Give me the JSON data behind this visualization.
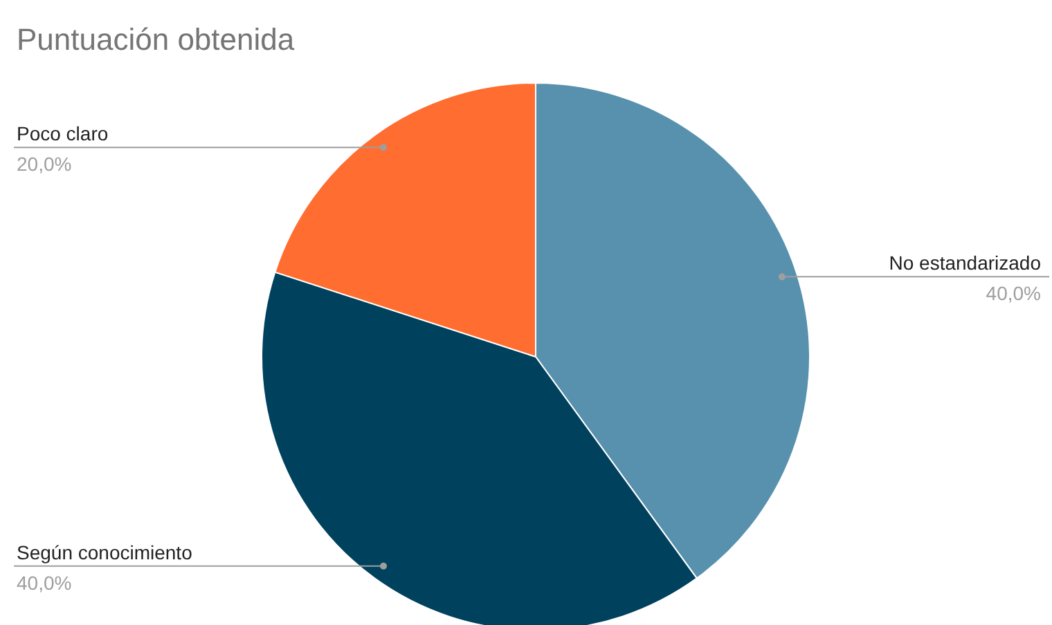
{
  "chart_data": {
    "type": "pie",
    "title": "Puntuación obtenida",
    "categories": [
      "No estandarizado",
      "Según conocimiento",
      "Poco claro"
    ],
    "values": [
      40,
      40,
      20
    ],
    "colors": [
      "#5891ad",
      "#00425e",
      "#ff6d31"
    ],
    "value_labels": [
      "40,0%",
      "40,0%",
      "20,0%"
    ]
  }
}
